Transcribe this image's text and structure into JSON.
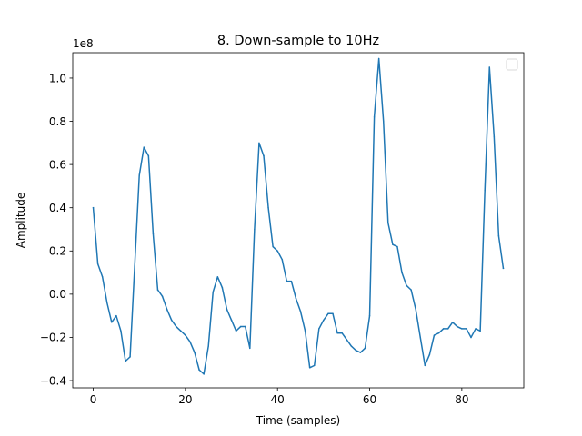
{
  "chart_data": {
    "type": "line",
    "title": "8. Down-sample to 10Hz",
    "xlabel": "Time (samples)",
    "ylabel": "Amplitude",
    "y_scale_label": "1e8",
    "xlim": [
      -4.45,
      93.45
    ],
    "ylim": [
      -0.4335,
      1.1175
    ],
    "x_ticks": [
      0,
      20,
      40,
      60,
      80
    ],
    "x_tick_labels": [
      "0",
      "20",
      "40",
      "60",
      "80"
    ],
    "y_ticks": [
      -0.4,
      -0.2,
      0.0,
      0.2,
      0.4,
      0.6,
      0.8,
      1.0
    ],
    "y_tick_labels": [
      "−0.4",
      "−0.2",
      "0.0",
      "0.2",
      "0.4",
      "0.6",
      "0.8",
      "1.0"
    ],
    "grid": false,
    "legend": "upper right (empty)",
    "colors": {
      "line": "#1f77b4"
    },
    "series": [
      {
        "x": [
          0,
          1,
          2,
          3,
          4,
          5,
          6,
          7,
          8,
          9,
          10,
          11,
          12,
          13,
          14,
          15,
          16,
          17,
          18,
          19,
          20,
          21,
          22,
          23,
          24,
          25,
          26,
          27,
          28,
          29,
          30,
          31,
          32,
          33,
          34,
          35,
          36,
          37,
          38,
          39,
          40,
          41,
          42,
          43,
          44,
          45,
          46,
          47,
          48,
          49,
          50,
          51,
          52,
          53,
          54,
          55,
          56,
          57,
          58,
          59,
          60,
          61,
          62,
          63,
          64,
          65,
          66,
          67,
          68,
          69,
          70,
          71,
          72,
          73,
          74,
          75,
          76,
          77,
          78,
          79,
          80,
          81,
          82,
          83,
          84,
          85,
          86,
          87,
          88,
          89
        ],
        "values": [
          0.4,
          0.14,
          0.08,
          -0.04,
          -0.13,
          -0.1,
          -0.17,
          -0.31,
          -0.29,
          0.13,
          0.55,
          0.68,
          0.64,
          0.28,
          0.02,
          -0.01,
          -0.07,
          -0.12,
          -0.15,
          -0.17,
          -0.19,
          -0.22,
          -0.27,
          -0.35,
          -0.37,
          -0.24,
          0.01,
          0.08,
          0.03,
          -0.07,
          -0.12,
          -0.17,
          -0.15,
          -0.15,
          -0.25,
          0.3,
          0.7,
          0.64,
          0.4,
          0.22,
          0.2,
          0.16,
          0.06,
          0.06,
          -0.02,
          -0.08,
          -0.17,
          -0.34,
          -0.33,
          -0.16,
          -0.12,
          -0.09,
          -0.09,
          -0.18,
          -0.18,
          -0.21,
          -0.24,
          -0.26,
          -0.27,
          -0.25,
          -0.1,
          0.82,
          1.09,
          0.8,
          0.33,
          0.23,
          0.22,
          0.1,
          0.04,
          0.02,
          -0.07,
          -0.2,
          -0.33,
          -0.28,
          -0.19,
          -0.18,
          -0.16,
          -0.16,
          -0.13,
          -0.15,
          -0.16,
          -0.16,
          -0.2,
          -0.16,
          -0.17,
          0.48,
          1.05,
          0.73,
          0.27,
          0.12
        ]
      }
    ]
  }
}
